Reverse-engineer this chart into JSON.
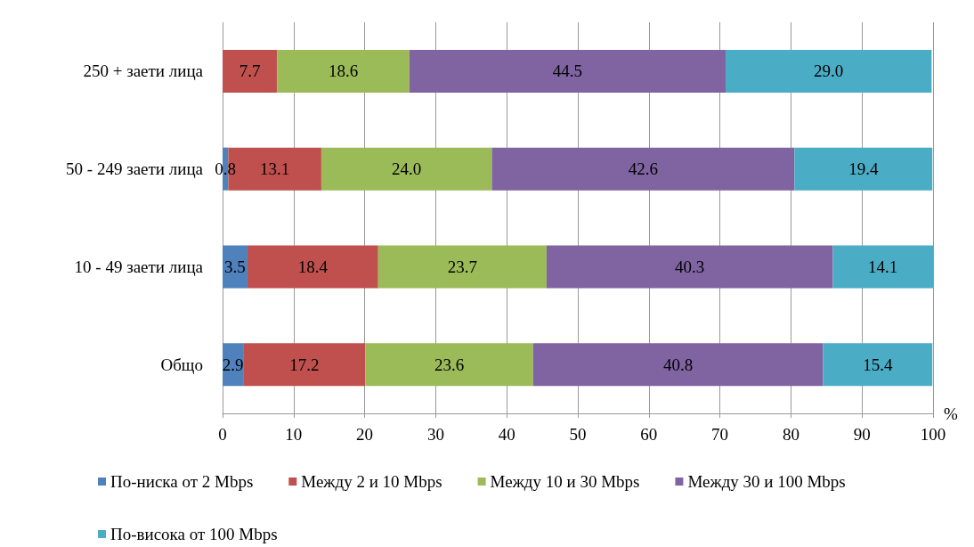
{
  "chart_data": {
    "type": "bar",
    "orientation": "horizontal",
    "stacked": true,
    "xlabel": "%",
    "categories": [
      "250 + заети лица",
      "50 - 249 заети лица",
      "10 - 49 заети лица",
      "Общо"
    ],
    "xlim": [
      0,
      100
    ],
    "xticks": [
      0,
      10,
      20,
      30,
      40,
      50,
      60,
      70,
      80,
      90,
      100
    ],
    "grid": "x",
    "legend": "bottom",
    "series": [
      {
        "name": "По-ниска от 2 Mbps",
        "color": "#4f81bd",
        "values": [
          null,
          0.8,
          3.5,
          2.9
        ],
        "value_labels": [
          null,
          "0.8",
          "3.5",
          "2.9"
        ]
      },
      {
        "name": "Между 2 и 10 Mbps",
        "color": "#c0504d",
        "values": [
          7.7,
          13.1,
          18.4,
          17.2
        ],
        "value_labels": [
          "7.7",
          "13.1",
          "18.4",
          "17.2"
        ]
      },
      {
        "name": "Между 10 и 30 Mbps",
        "color": "#9bbb59",
        "values": [
          18.6,
          24.0,
          23.7,
          23.6
        ],
        "value_labels": [
          "18.6",
          "24.0",
          "23.7",
          "23.6"
        ]
      },
      {
        "name": "Между 30 и 100 Mbps",
        "color": "#8064a2",
        "values": [
          44.5,
          42.6,
          40.3,
          40.8
        ],
        "value_labels": [
          "44.5",
          "42.6",
          "40.3",
          "40.8"
        ]
      },
      {
        "name": "По-висока от 100 Mbps",
        "color": "#4bacc6",
        "values": [
          29.0,
          19.4,
          14.1,
          15.4
        ],
        "value_labels": [
          "29.0",
          "19.4",
          "14.1",
          "15.4"
        ]
      }
    ]
  }
}
